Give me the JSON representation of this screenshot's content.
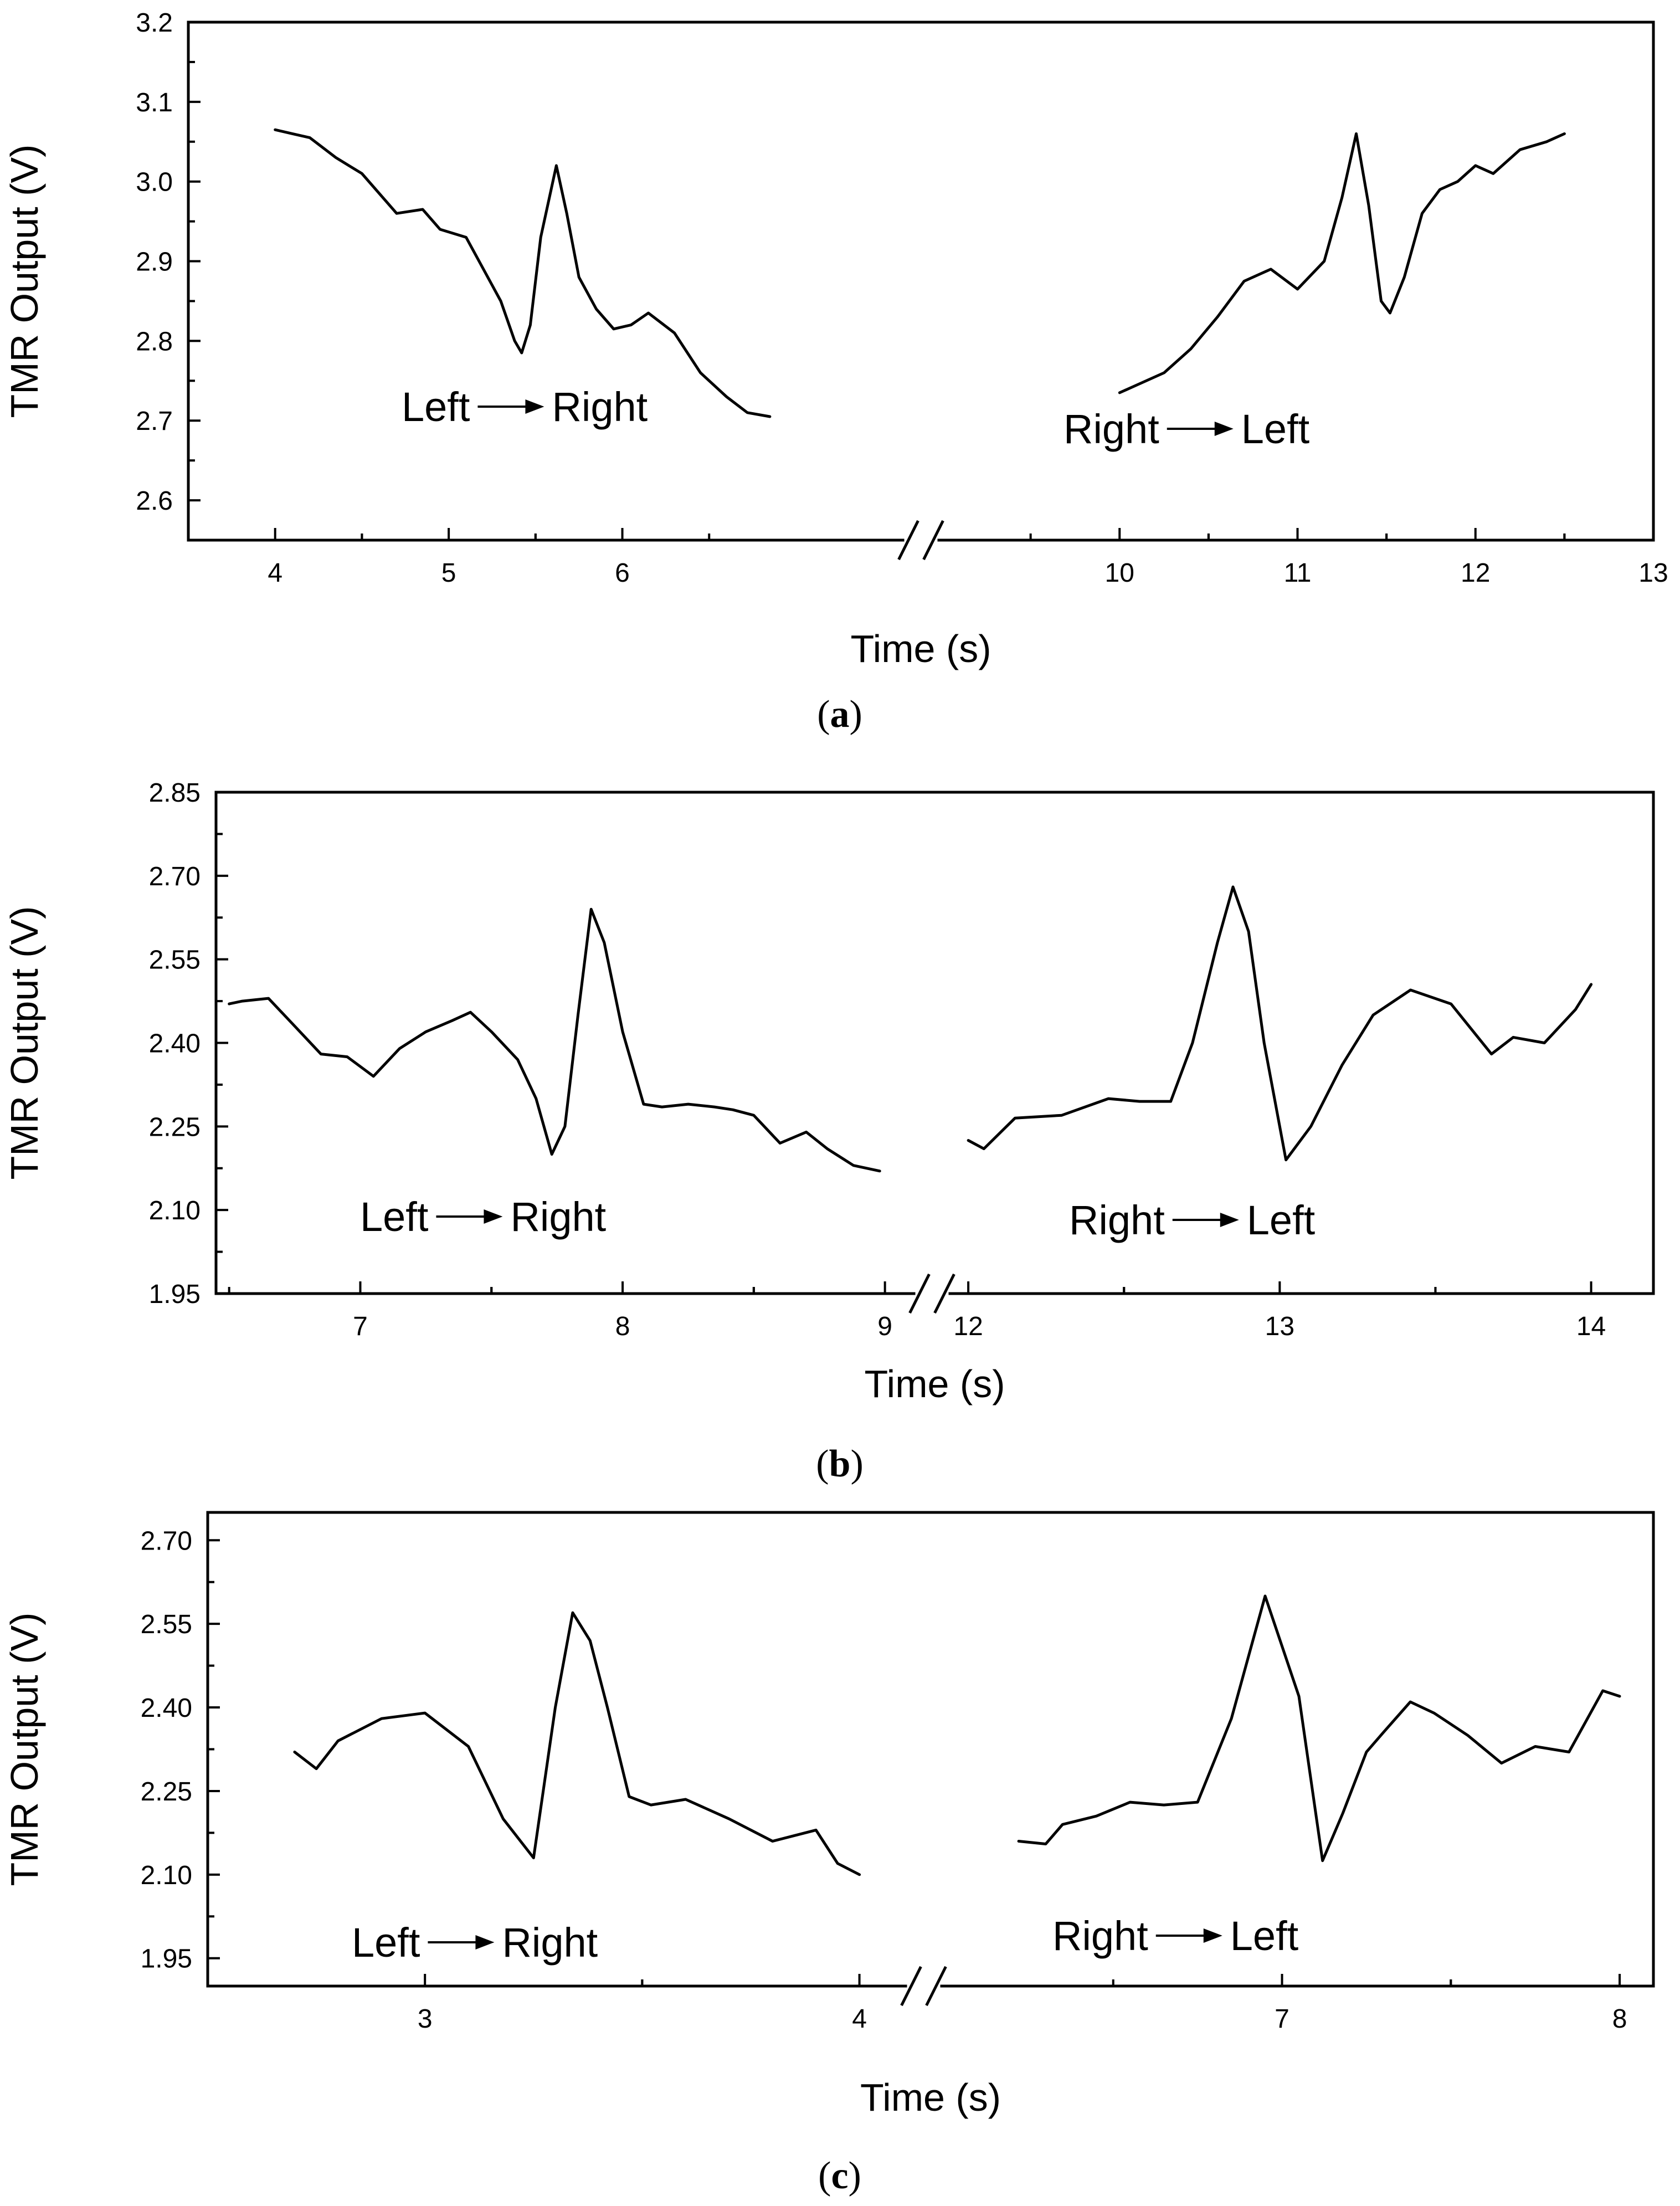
{
  "chart_data": [
    {
      "id": "a",
      "type": "line",
      "caption_letter": "a",
      "xlabel": "Time (s)",
      "ylabel": "TMR Output (V)",
      "ylim": [
        2.55,
        3.2
      ],
      "yticks": [
        "2.6",
        "2.7",
        "2.8",
        "2.9",
        "3.0",
        "3.1",
        "3.2"
      ],
      "axis_break": true,
      "segments": [
        {
          "name": "Left to Right",
          "xlim": [
            3.5,
            7.6
          ],
          "xticks": [
            "4",
            "5",
            "6"
          ],
          "annotation": {
            "from": "Left",
            "to": "Right"
          },
          "x": [
            4.0,
            4.1,
            4.2,
            4.35,
            4.5,
            4.7,
            4.85,
            4.95,
            5.1,
            5.3,
            5.38,
            5.42,
            5.47,
            5.53,
            5.62,
            5.68,
            5.75,
            5.85,
            5.95,
            6.05,
            6.15,
            6.3,
            6.45,
            6.6,
            6.72,
            6.85
          ],
          "y": [
            3.065,
            3.06,
            3.055,
            3.03,
            3.01,
            2.96,
            2.965,
            2.94,
            2.93,
            2.85,
            2.8,
            2.785,
            2.82,
            2.93,
            3.02,
            2.96,
            2.88,
            2.84,
            2.815,
            2.82,
            2.835,
            2.81,
            2.76,
            2.73,
            2.71,
            2.705
          ]
        },
        {
          "name": "Right to Left",
          "xlim": [
            9.0,
            13.0
          ],
          "xticks": [
            "10",
            "11",
            "12",
            "13"
          ],
          "annotation": {
            "from": "Right",
            "to": "Left"
          },
          "x": [
            10.0,
            10.1,
            10.25,
            10.4,
            10.55,
            10.7,
            10.85,
            11.0,
            11.15,
            11.25,
            11.33,
            11.4,
            11.47,
            11.52,
            11.6,
            11.7,
            11.8,
            11.9,
            12.0,
            12.1,
            12.25,
            12.4,
            12.5
          ],
          "y": [
            2.735,
            2.745,
            2.76,
            2.79,
            2.83,
            2.875,
            2.89,
            2.865,
            2.9,
            2.98,
            3.06,
            2.97,
            2.85,
            2.835,
            2.88,
            2.96,
            2.99,
            3.0,
            3.02,
            3.01,
            3.04,
            3.05,
            3.06
          ]
        }
      ]
    },
    {
      "id": "b",
      "type": "line",
      "caption_letter": "b",
      "xlabel": "Time (s)",
      "ylabel": "TMR Output (V)",
      "ylim": [
        1.95,
        2.85
      ],
      "yticks": [
        "1.95",
        "2.10",
        "2.25",
        "2.40",
        "2.55",
        "2.70",
        "2.85"
      ],
      "axis_break": true,
      "segments": [
        {
          "name": "Left to Right",
          "xlim": [
            6.45,
            9.1
          ],
          "xticks": [
            "7",
            "8",
            "9"
          ],
          "annotation": {
            "from": "Left",
            "to": "Right"
          },
          "x": [
            6.5,
            6.55,
            6.65,
            6.75,
            6.85,
            6.95,
            7.05,
            7.15,
            7.25,
            7.35,
            7.42,
            7.5,
            7.6,
            7.67,
            7.73,
            7.78,
            7.83,
            7.88,
            7.93,
            8.0,
            8.08,
            8.15,
            8.25,
            8.35,
            8.42,
            8.5,
            8.6,
            8.7,
            8.78,
            8.88,
            8.98
          ],
          "y": [
            2.47,
            2.475,
            2.48,
            2.43,
            2.38,
            2.375,
            2.34,
            2.39,
            2.42,
            2.44,
            2.455,
            2.42,
            2.37,
            2.3,
            2.2,
            2.25,
            2.45,
            2.64,
            2.58,
            2.42,
            2.29,
            2.285,
            2.29,
            2.285,
            2.28,
            2.27,
            2.22,
            2.24,
            2.21,
            2.18,
            2.17
          ]
        },
        {
          "name": "Right to Left",
          "xlim": [
            11.95,
            14.2
          ],
          "xticks": [
            "12",
            "13",
            "14"
          ],
          "annotation": {
            "from": "Right",
            "to": "Left"
          },
          "x": [
            12.0,
            12.05,
            12.15,
            12.3,
            12.45,
            12.55,
            12.65,
            12.72,
            12.8,
            12.85,
            12.9,
            12.95,
            13.02,
            13.1,
            13.2,
            13.3,
            13.42,
            13.55,
            13.68,
            13.75,
            13.85,
            13.95,
            14.0
          ],
          "y": [
            2.225,
            2.21,
            2.265,
            2.27,
            2.3,
            2.295,
            2.295,
            2.4,
            2.58,
            2.68,
            2.6,
            2.4,
            2.19,
            2.25,
            2.36,
            2.45,
            2.495,
            2.47,
            2.38,
            2.41,
            2.4,
            2.46,
            2.505
          ]
        }
      ]
    },
    {
      "id": "c",
      "type": "line",
      "caption_letter": "c",
      "xlabel": "Time (s)",
      "ylabel": "TMR Output (V)",
      "ylim": [
        1.9,
        2.75
      ],
      "yticks": [
        "1.95",
        "2.10",
        "2.25",
        "2.40",
        "2.55",
        "2.70"
      ],
      "axis_break": true,
      "segments": [
        {
          "name": "Left to Right",
          "xlim": [
            2.5,
            4.1
          ],
          "xticks": [
            "3",
            "4"
          ],
          "annotation": {
            "from": "Left",
            "to": "Right"
          },
          "x": [
            2.7,
            2.75,
            2.8,
            2.9,
            3.0,
            3.1,
            3.18,
            3.25,
            3.3,
            3.34,
            3.38,
            3.42,
            3.47,
            3.52,
            3.6,
            3.7,
            3.8,
            3.9,
            3.95,
            4.0
          ],
          "y": [
            2.32,
            2.29,
            2.34,
            2.38,
            2.39,
            2.33,
            2.2,
            2.13,
            2.4,
            2.57,
            2.52,
            2.4,
            2.24,
            2.225,
            2.235,
            2.2,
            2.16,
            2.18,
            2.12,
            2.1
          ],
          "x_extra_ticks_note": "",
          "xtick_positions": [
            3,
            4
          ]
        },
        {
          "name": "Right to Left",
          "xlim": [
            6.0,
            8.1
          ],
          "xticks": [
            "7",
            "8"
          ],
          "annotation": {
            "from": "Right",
            "to": "Left"
          },
          "x": [
            6.22,
            6.3,
            6.35,
            6.45,
            6.55,
            6.65,
            6.75,
            6.85,
            6.95,
            7.05,
            7.12,
            7.18,
            7.25,
            7.3,
            7.38,
            7.45,
            7.55,
            7.65,
            7.75,
            7.85,
            7.95,
            8.0
          ],
          "y": [
            2.16,
            2.155,
            2.19,
            2.205,
            2.23,
            2.225,
            2.23,
            2.38,
            2.6,
            2.42,
            2.125,
            2.21,
            2.32,
            2.355,
            2.41,
            2.39,
            2.35,
            2.3,
            2.33,
            2.32,
            2.43,
            2.42
          ]
        }
      ]
    }
  ]
}
